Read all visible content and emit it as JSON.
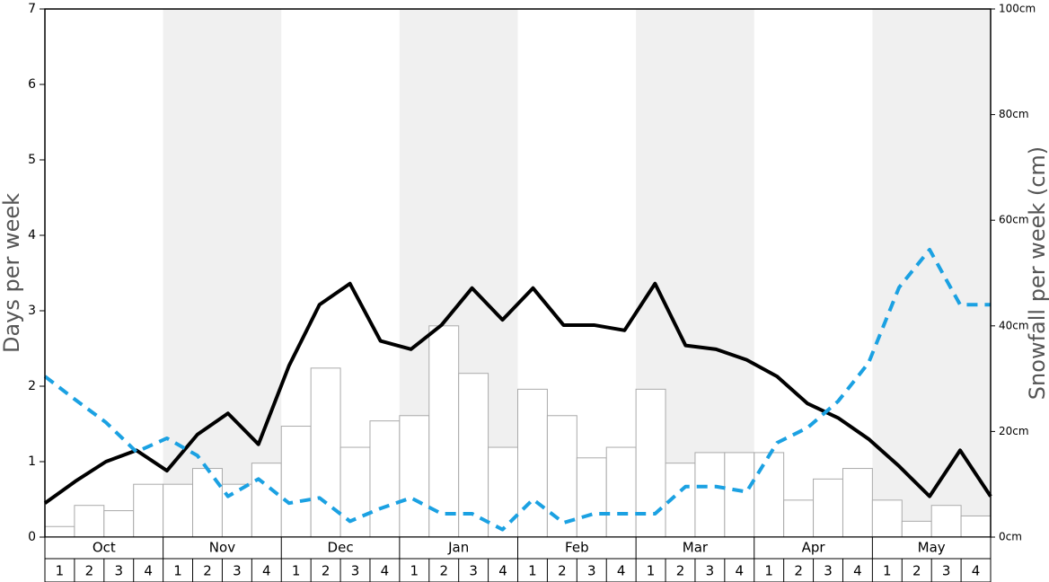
{
  "chart_data": {
    "type": "bar",
    "ylabel": "Days per week",
    "y2label": "Snowfall per week (cm)",
    "months": [
      "Oct",
      "Nov",
      "Dec",
      "Jan",
      "Feb",
      "Mar",
      "Apr",
      "May"
    ],
    "categories": [
      "1",
      "2",
      "3",
      "4",
      "1",
      "2",
      "3",
      "4",
      "1",
      "2",
      "3",
      "4",
      "1",
      "2",
      "3",
      "4",
      "1",
      "2",
      "3",
      "4",
      "1",
      "2",
      "3",
      "4",
      "1",
      "2",
      "3",
      "4",
      "1",
      "2",
      "3",
      "4"
    ],
    "ylim": [
      0,
      7
    ],
    "yticks": [
      0,
      1,
      2,
      3,
      4,
      5,
      6,
      7
    ],
    "y2lim": [
      0,
      100
    ],
    "y2ticks": [
      {
        "value": 0,
        "label": "0cm"
      },
      {
        "value": 20,
        "label": "20cm"
      },
      {
        "value": 40,
        "label": "40cm"
      },
      {
        "value": 60,
        "label": "60cm"
      },
      {
        "value": 80,
        "label": "80cm"
      },
      {
        "value": 100,
        "label": "100cm"
      }
    ],
    "series": [
      {
        "type": "bar",
        "axis": "y2",
        "color": "#ffffff",
        "values": [
          2,
          6,
          5,
          10,
          10,
          13,
          10,
          14,
          21,
          32,
          17,
          22,
          23,
          40,
          31,
          17,
          28,
          23,
          15,
          17,
          28,
          14,
          16,
          16,
          16,
          7,
          11,
          13,
          7,
          3,
          6,
          4
        ]
      },
      {
        "type": "line",
        "color": "#000000",
        "values": [
          0.45,
          0.74,
          1.0,
          1.15,
          0.88,
          1.36,
          1.64,
          1.23,
          2.27,
          3.08,
          3.36,
          2.6,
          2.49,
          2.81,
          3.3,
          2.88,
          3.3,
          2.81,
          2.81,
          2.74,
          3.36,
          2.54,
          2.49,
          2.35,
          2.13,
          1.77,
          1.58,
          1.3,
          0.94,
          0.54,
          1.15,
          0.54
        ]
      },
      {
        "type": "line",
        "color": "#1ba1e2",
        "dashed": true,
        "values": [
          2.13,
          1.82,
          1.52,
          1.13,
          1.31,
          1.08,
          0.54,
          0.77,
          0.45,
          0.52,
          0.21,
          0.38,
          0.52,
          0.31,
          0.31,
          0.1,
          0.5,
          0.19,
          0.31,
          0.31,
          0.31,
          0.67,
          0.67,
          0.6,
          1.25,
          1.45,
          1.8,
          2.31,
          3.31,
          3.81,
          3.08,
          3.08
        ]
      }
    ]
  }
}
